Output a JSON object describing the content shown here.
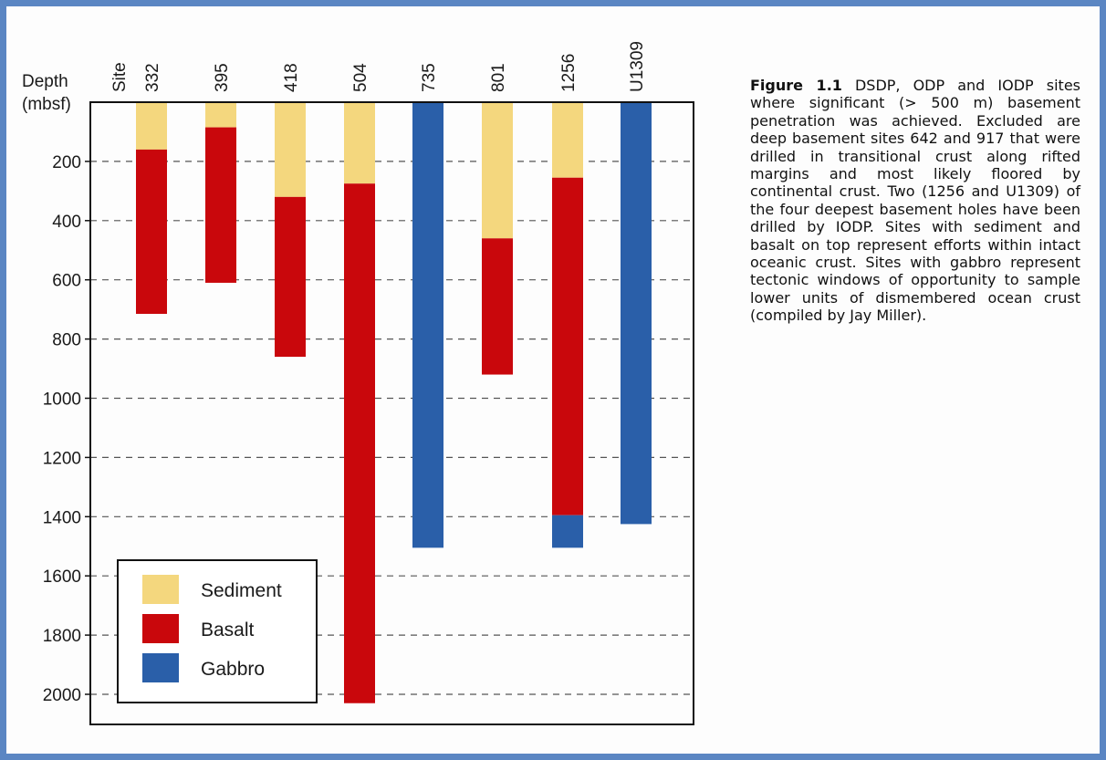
{
  "chart_data": {
    "type": "bar",
    "subtype": "stacked-column, depth increasing downward",
    "y_axis_title_line1": "Depth",
    "y_axis_title_line2": "(mbsf)",
    "site_header": "Site",
    "y_ticks": [
      "200",
      "400",
      "600",
      "800",
      "1000",
      "1200",
      "1400",
      "1600",
      "1800",
      "2000"
    ],
    "y_tick_values": [
      200,
      400,
      600,
      800,
      1000,
      1200,
      1400,
      1600,
      1800,
      2000
    ],
    "ylim": [
      0,
      2100
    ],
    "y_inverted": true,
    "grid": "horizontal dashed",
    "categories": [
      "332",
      "395",
      "418",
      "504",
      "735",
      "801",
      "1256",
      "U1309"
    ],
    "series": [
      {
        "name": "Sediment",
        "color": "#f4d77e",
        "segments": [
          [
            0,
            160
          ],
          [
            0,
            85
          ],
          [
            0,
            320
          ],
          [
            0,
            275
          ],
          null,
          [
            0,
            460
          ],
          [
            0,
            255
          ],
          null
        ]
      },
      {
        "name": "Basalt",
        "color": "#c9070c",
        "segments": [
          [
            160,
            715
          ],
          [
            85,
            610
          ],
          [
            320,
            860
          ],
          [
            275,
            2030
          ],
          null,
          [
            460,
            920
          ],
          [
            255,
            1395
          ],
          null
        ]
      },
      {
        "name": "Gabbro",
        "color": "#2a5fa9",
        "segments": [
          null,
          null,
          null,
          null,
          [
            0,
            1505
          ],
          null,
          [
            1395,
            1505
          ],
          [
            0,
            1425
          ]
        ]
      }
    ],
    "legend": {
      "placement": "bottom-left",
      "entries": [
        "Sediment",
        "Basalt",
        "Gabbro"
      ]
    }
  },
  "caption": {
    "label": "Figure 1.1",
    "text": " DSDP, ODP and IODP sites where significant (> 500 m) basement penetration was achieved. Excluded are deep basement sites 642 and 917 that were drilled in transitional crust along rifted margins and most likely floored by continental crust. Two (1256 and U1309) of the four deepest basement holes have been drilled by IODP. Sites with sediment and basalt on top represent efforts within intact oceanic crust. Sites with gabbro represent tectonic windows of opportunity to sample lower units of dismembered ocean crust (compiled by Jay Miller)."
  },
  "colors": {
    "frame_border": "#5b86c3",
    "gridline": "#555555"
  }
}
